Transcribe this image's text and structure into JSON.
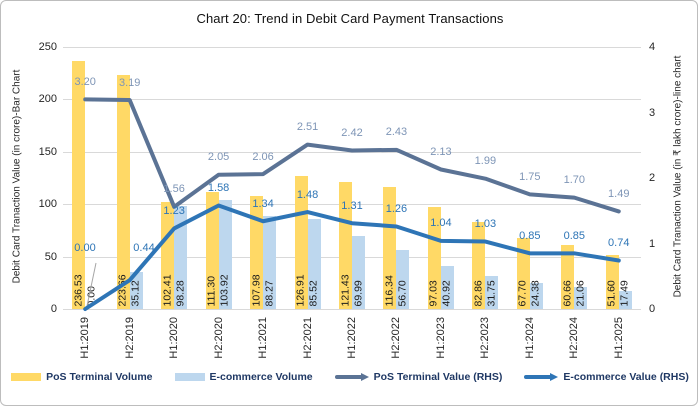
{
  "title": "Chart 20: Trend in Debit Card Payment Transactions",
  "chart_data": {
    "type": "combo (bar + line)",
    "title": "Chart 20: Trend in Debit Card Payment Transactions",
    "categories": [
      "H1:2019",
      "H2:2019",
      "H1:2020",
      "H2:2020",
      "H1:2021",
      "H2:2021",
      "H1:2022",
      "H2:2022",
      "H1:2023",
      "H2:2023",
      "H1:2024",
      "H2:2024",
      "H1:2025"
    ],
    "bar_series": [
      {
        "name": "PoS Terminal Volume",
        "axis": "left",
        "color": "#FFD966",
        "values": [
          236.53,
          223.66,
          102.41,
          111.3,
          107.98,
          126.91,
          121.43,
          116.34,
          97.03,
          82.86,
          67.7,
          60.66,
          51.6
        ]
      },
      {
        "name": "E-commerce Volume",
        "axis": "left",
        "color": "#BDD7EE",
        "values": [
          0.0,
          35.12,
          98.28,
          103.92,
          88.27,
          85.52,
          69.99,
          56.7,
          40.92,
          31.75,
          24.38,
          21.06,
          17.49
        ]
      }
    ],
    "line_series": [
      {
        "name": "PoS Terminal Value (RHS)",
        "axis": "right",
        "color": "#5B7395",
        "label_color": "#7E95B6",
        "values": [
          3.2,
          3.19,
          1.56,
          2.05,
          2.06,
          2.51,
          2.42,
          2.43,
          2.13,
          1.99,
          1.75,
          1.7,
          1.49
        ]
      },
      {
        "name": "E-commerce Value (RHS)",
        "axis": "right",
        "color": "#2E75B6",
        "label_color": "#2E75B6",
        "values": [
          0.0,
          0.44,
          1.23,
          1.58,
          1.34,
          1.48,
          1.31,
          1.26,
          1.04,
          1.03,
          0.85,
          0.85,
          0.74
        ]
      }
    ],
    "left_axis": {
      "title": "Debit Card Tranaction Value (in crore)-Bar Chart",
      "ticks": [
        0,
        50,
        100,
        150,
        200,
        250
      ],
      "range": [
        0,
        250
      ]
    },
    "right_axis": {
      "title": "Debit Card Tranaction Value (in ₹ lakh crore)-line chart",
      "ticks": [
        0,
        1,
        2,
        3,
        4
      ],
      "range": [
        0,
        4
      ]
    },
    "grid": true,
    "legend_position": "bottom",
    "value_label_decimals": 2
  }
}
